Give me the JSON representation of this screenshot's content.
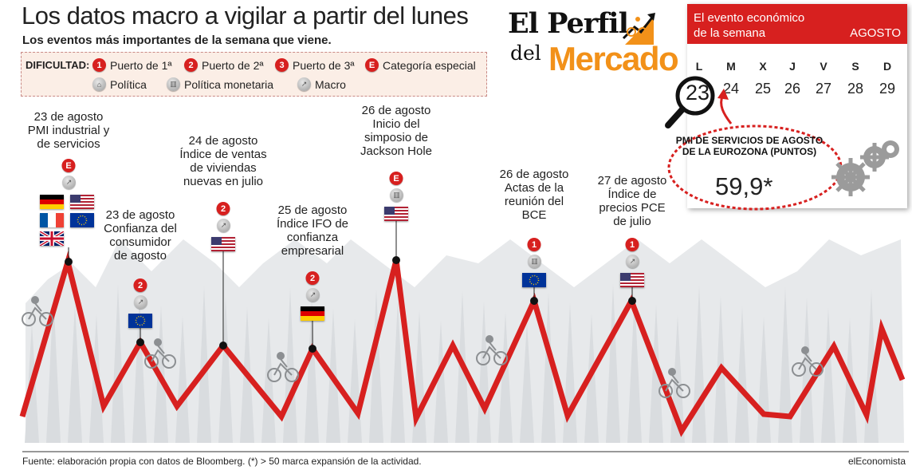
{
  "header": {
    "title": "Los datos macro a vigilar a partir del lunes",
    "subtitle": "Los eventos más importantes de la semana que viene."
  },
  "legend": {
    "label": "DIFICULTAD:",
    "items": [
      {
        "badge": "1",
        "label": "Puerto de 1ª"
      },
      {
        "badge": "2",
        "label": "Puerto de 2ª"
      },
      {
        "badge": "3",
        "label": "Puerto de 3ª"
      },
      {
        "badge": "E",
        "label": "Categoría especial"
      },
      {
        "icon": "building-icon",
        "label": "Política"
      },
      {
        "icon": "bank-icon",
        "label": "Política monetaria"
      },
      {
        "icon": "trend-icon",
        "label": "Macro"
      }
    ]
  },
  "logo": {
    "line1": "El Perfil",
    "line2": "del",
    "line3": "Mercado"
  },
  "calendar": {
    "header_line1": "El evento económico",
    "header_line2": "de la semana",
    "month": "AGOSTO",
    "days": [
      {
        "dow": "L",
        "num": "23"
      },
      {
        "dow": "M",
        "num": "24"
      },
      {
        "dow": "X",
        "num": "25"
      },
      {
        "dow": "J",
        "num": "26"
      },
      {
        "dow": "V",
        "num": "27"
      },
      {
        "dow": "S",
        "num": "28"
      },
      {
        "dow": "D",
        "num": "29"
      }
    ],
    "highlight": "23",
    "event_title": "PMI DE SERVICIOS DE AGOSTO DE LA EUROZONA (PUNTOS)",
    "event_value": "59,9*"
  },
  "events": [
    {
      "lines": [
        "23 de agosto",
        "PMI industrial y",
        "de servicios"
      ],
      "badge": "E",
      "type": "Macro",
      "flags": [
        "Alemania",
        "EE.UU.",
        "Francia",
        "Zona euro",
        "Reino Unido"
      ]
    },
    {
      "lines": [
        "23 de agosto",
        "Confianza del",
        "consumidor",
        "de agosto"
      ],
      "badge": "2",
      "type": "Macro",
      "flags": [
        "Zona euro"
      ]
    },
    {
      "lines": [
        "24 de agosto",
        "Índice de ventas",
        "de viviendas",
        "nuevas en julio"
      ],
      "badge": "2",
      "type": "Macro",
      "flags": [
        "EE.UU."
      ]
    },
    {
      "lines": [
        "25 de agosto",
        "Índice IFO de",
        "confianza",
        "empresarial"
      ],
      "badge": "2",
      "type": "Macro",
      "flags": [
        "Alemania"
      ]
    },
    {
      "lines": [
        "26 de agosto",
        "Inicio del",
        "simposio de",
        "Jackson Hole"
      ],
      "badge": "E",
      "type": "Política monetaria",
      "flags": [
        "EE.UU."
      ]
    },
    {
      "lines": [
        "26 de agosto",
        "Actas de la",
        "reunión del",
        "BCE"
      ],
      "badge": "1",
      "type": "Política monetaria",
      "flags": [
        "Zona euro"
      ]
    },
    {
      "lines": [
        "27 de agosto",
        "Índice de",
        "precios PCE",
        "de julio"
      ],
      "badge": "1",
      "type": "Macro",
      "flags": [
        "EE.UU."
      ]
    }
  ],
  "footer": {
    "source": "Fuente: elaboración propia con datos de Bloomberg. (*) > 50 marca expansión de la actividad.",
    "brand": "elEconomista"
  },
  "colors": {
    "accent": "#d7201f",
    "logo_orange": "#f29119",
    "mountain": "#e6e8ea"
  }
}
